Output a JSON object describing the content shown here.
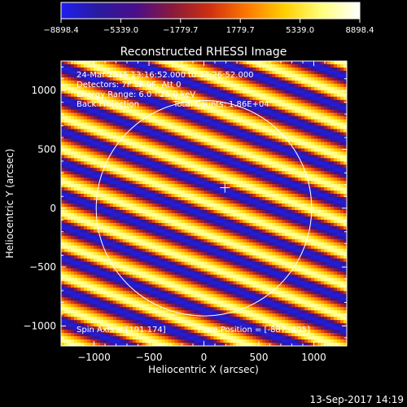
{
  "chart_data": {
    "type": "heatmap",
    "title": "Reconstructed RHESSI Image",
    "xlabel": "Heliocentric X (arcsec)",
    "ylabel": "Heliocentric Y (arcsec)",
    "xlim": [
      -1300,
      1300
    ],
    "ylim": [
      -1170,
      1250
    ],
    "xticks": [
      -1000,
      -500,
      0,
      500,
      1000
    ],
    "yticks": [
      -1000,
      -500,
      0,
      500,
      1000
    ],
    "xtick_labels": [
      "−1000",
      "−500",
      "0",
      "500",
      "1000"
    ],
    "ytick_labels": [
      "−1000",
      "−500",
      "0",
      "500",
      "1000"
    ],
    "colorbar": {
      "min": -8898.4,
      "max": 8898.4,
      "tick_values": [
        -8898.4,
        -5339.0,
        -1779.7,
        1779.7,
        5339.0,
        8898.4
      ],
      "tick_labels": [
        "−8898.4",
        "−5339.0",
        "−1779.7",
        "1779.7",
        "5339.0",
        "8898.4"
      ],
      "colors": [
        "#1e1ef0",
        "#2a1aa0",
        "#4a0e8a",
        "#8a1a3a",
        "#d03010",
        "#ff7a00",
        "#ffd000",
        "#ffff80",
        "#ffffff"
      ]
    },
    "annotations": {
      "time_range": "24-Mar-2015 13:16:52.000 to 13:26:52.000",
      "detectors": "Detectors: 7F 8F 9F, Att 0",
      "energy_range": "Energy Range: 6.0 - 25.0 keV",
      "back_projection": "Back Projection",
      "total_counts": "Total Counts: 1.86E+04",
      "spin_axis": "Spin Axis = [191.174]",
      "flare_position": "Flare Position = [-887,-405]"
    },
    "disk": {
      "center_x": 0,
      "center_y": 0,
      "radius": 980
    },
    "marker": {
      "x": 191,
      "y": 174
    },
    "stripes": {
      "angle_deg": -19,
      "period_arcsec": 255,
      "min_value": -8898.4,
      "max_value": 8898.4
    }
  },
  "footer": {
    "timestamp": "13-Sep-2017 14:19"
  }
}
